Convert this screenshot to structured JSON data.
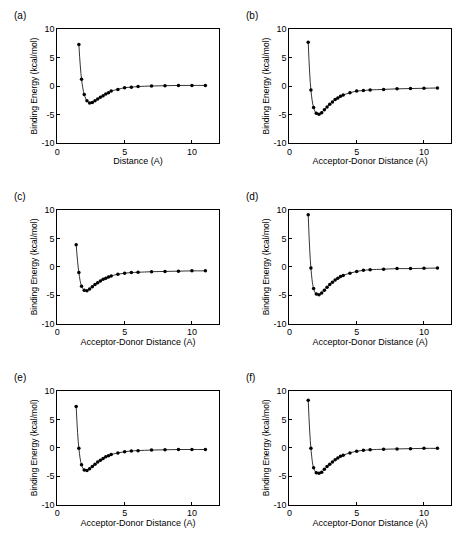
{
  "chart_data": [
    {
      "type": "line",
      "title": "(a)",
      "x_label": "Distance (A)",
      "y_label": "Binding Energy (kcal/mol)",
      "x": [
        1.6,
        1.8,
        2.0,
        2.2,
        2.4,
        2.6,
        2.8,
        3.0,
        3.2,
        3.4,
        3.6,
        3.8,
        4.0,
        4.5,
        5.0,
        5.5,
        6.0,
        7.0,
        8.0,
        9.0,
        10.0,
        11.0
      ],
      "values": [
        7.3,
        1.2,
        -1.5,
        -2.6,
        -3.0,
        -2.9,
        -2.6,
        -2.3,
        -2.0,
        -1.7,
        -1.4,
        -1.2,
        -0.9,
        -0.6,
        -0.3,
        -0.2,
        -0.1,
        0.0,
        0.05,
        0.1,
        0.1,
        0.1
      ],
      "xlim": [
        0,
        12
      ],
      "ylim": [
        -10,
        10
      ],
      "xticks": [
        0,
        5,
        10
      ],
      "yticks": [
        -10,
        -5,
        0,
        5,
        10
      ],
      "color": "#000000",
      "marker": "circle",
      "grid": false
    },
    {
      "type": "line",
      "title": "(b)",
      "x_label": "Acceptor-Donor Distance (A)",
      "y_label": "Binding Energy (kcal/mol)",
      "x": [
        1.4,
        1.6,
        1.8,
        2.0,
        2.2,
        2.4,
        2.6,
        2.8,
        3.0,
        3.2,
        3.4,
        3.6,
        3.8,
        4.0,
        4.5,
        5.0,
        5.5,
        6.0,
        7.0,
        8.0,
        9.0,
        10.0,
        11.0
      ],
      "values": [
        7.7,
        -0.7,
        -3.8,
        -4.8,
        -5.0,
        -4.7,
        -4.2,
        -3.7,
        -3.2,
        -2.8,
        -2.4,
        -2.1,
        -1.8,
        -1.6,
        -1.2,
        -0.9,
        -0.8,
        -0.7,
        -0.6,
        -0.5,
        -0.45,
        -0.4,
        -0.35
      ],
      "xlim": [
        0,
        12
      ],
      "ylim": [
        -10,
        10
      ],
      "xticks": [
        0,
        5,
        10
      ],
      "yticks": [
        -10,
        -5,
        0,
        5,
        10
      ],
      "color": "#000000",
      "marker": "circle",
      "grid": false
    },
    {
      "type": "line",
      "title": "(c)",
      "x_label": "Acceptor-Donor Distance (A)",
      "y_label": "Binding Energy (kcal/mol)",
      "x": [
        1.4,
        1.6,
        1.8,
        2.0,
        2.2,
        2.4,
        2.6,
        2.8,
        3.0,
        3.2,
        3.4,
        3.6,
        3.8,
        4.0,
        4.5,
        5.0,
        5.5,
        6.0,
        7.0,
        8.0,
        9.0,
        10.0,
        11.0
      ],
      "values": [
        3.9,
        -1.0,
        -3.4,
        -4.1,
        -4.2,
        -3.9,
        -3.5,
        -3.1,
        -2.8,
        -2.5,
        -2.2,
        -2.0,
        -1.8,
        -1.6,
        -1.3,
        -1.1,
        -1.0,
        -0.95,
        -0.85,
        -0.8,
        -0.75,
        -0.7,
        -0.7
      ],
      "xlim": [
        0,
        12
      ],
      "ylim": [
        -10,
        10
      ],
      "xticks": [
        0,
        5,
        10
      ],
      "yticks": [
        -10,
        -5,
        0,
        5,
        10
      ],
      "color": "#000000",
      "marker": "circle",
      "grid": false
    },
    {
      "type": "line",
      "title": "(d)",
      "x_label": "Acceptor-Donor Distance (A)",
      "y_label": "Binding Energy (kcal/mol)",
      "x": [
        1.4,
        1.6,
        1.8,
        2.0,
        2.2,
        2.4,
        2.6,
        2.8,
        3.0,
        3.2,
        3.4,
        3.6,
        3.8,
        4.0,
        4.5,
        5.0,
        5.5,
        6.0,
        7.0,
        8.0,
        9.0,
        10.0,
        11.0
      ],
      "values": [
        9.2,
        -0.2,
        -3.8,
        -4.8,
        -4.9,
        -4.6,
        -4.1,
        -3.6,
        -3.1,
        -2.7,
        -2.3,
        -2.0,
        -1.7,
        -1.5,
        -1.1,
        -0.8,
        -0.6,
        -0.5,
        -0.4,
        -0.3,
        -0.3,
        -0.25,
        -0.2
      ],
      "xlim": [
        0,
        12
      ],
      "ylim": [
        -10,
        10
      ],
      "xticks": [
        0,
        5,
        10
      ],
      "yticks": [
        -10,
        -5,
        0,
        5,
        10
      ],
      "color": "#000000",
      "marker": "circle",
      "grid": false
    },
    {
      "type": "line",
      "title": "(e)",
      "x_label": "Acceptor-Donor Distance (A)",
      "y_label": "Binding Energy (kcal/mol)",
      "x": [
        1.4,
        1.6,
        1.8,
        2.0,
        2.2,
        2.4,
        2.6,
        2.8,
        3.0,
        3.2,
        3.4,
        3.6,
        3.8,
        4.0,
        4.5,
        5.0,
        5.5,
        6.0,
        7.0,
        8.0,
        9.0,
        10.0,
        11.0
      ],
      "values": [
        7.3,
        -0.1,
        -3.0,
        -3.9,
        -4.0,
        -3.7,
        -3.3,
        -2.9,
        -2.5,
        -2.2,
        -1.9,
        -1.6,
        -1.4,
        -1.2,
        -0.9,
        -0.7,
        -0.55,
        -0.5,
        -0.4,
        -0.35,
        -0.3,
        -0.3,
        -0.3
      ],
      "xlim": [
        0,
        12
      ],
      "ylim": [
        -10,
        10
      ],
      "xticks": [
        0,
        5,
        10
      ],
      "yticks": [
        -10,
        -5,
        0,
        5,
        10
      ],
      "color": "#000000",
      "marker": "circle",
      "grid": false
    },
    {
      "type": "line",
      "title": "(f)",
      "x_label": "Acceptor-Donor Distance (A)",
      "y_label": "Binding Energy (kcal/mol)",
      "x": [
        1.4,
        1.6,
        1.8,
        2.0,
        2.2,
        2.4,
        2.6,
        2.8,
        3.0,
        3.2,
        3.4,
        3.6,
        3.8,
        4.0,
        4.5,
        5.0,
        5.5,
        6.0,
        7.0,
        8.0,
        9.0,
        10.0,
        11.0
      ],
      "values": [
        8.4,
        -0.1,
        -3.5,
        -4.4,
        -4.5,
        -4.3,
        -3.8,
        -3.3,
        -2.9,
        -2.5,
        -2.1,
        -1.8,
        -1.5,
        -1.3,
        -0.9,
        -0.6,
        -0.45,
        -0.35,
        -0.25,
        -0.2,
        -0.15,
        -0.1,
        -0.1
      ],
      "xlim": [
        0,
        12
      ],
      "ylim": [
        -10,
        10
      ],
      "xticks": [
        0,
        5,
        10
      ],
      "yticks": [
        -10,
        -5,
        0,
        5,
        10
      ],
      "color": "#000000",
      "marker": "circle",
      "grid": false
    }
  ]
}
